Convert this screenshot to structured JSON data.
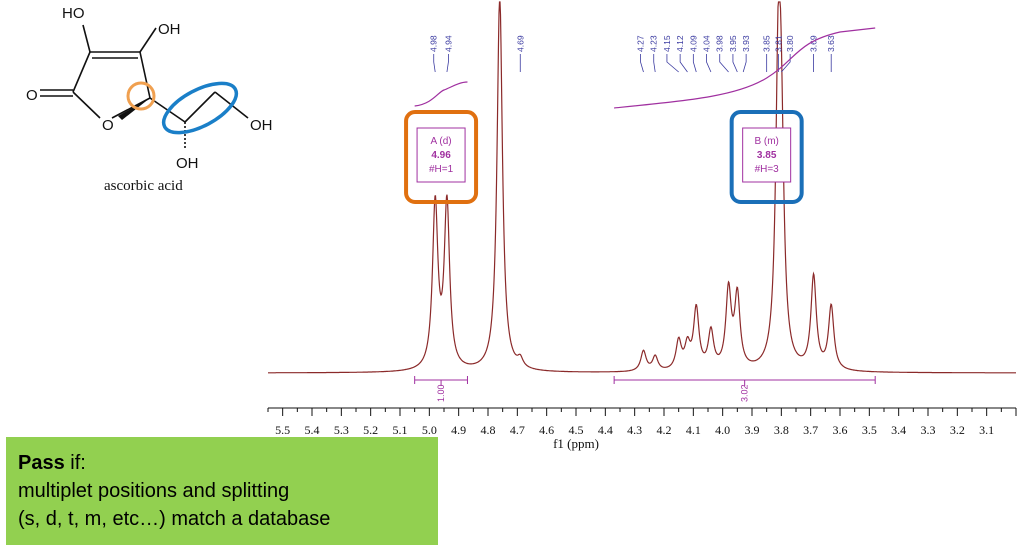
{
  "molecule": {
    "name": "ascorbic acid",
    "atom_labels": [
      "HO",
      "OH",
      "O",
      "O",
      "OH",
      "OH"
    ]
  },
  "chart_data": {
    "type": "line",
    "xlabel": "f1 (ppm)",
    "xlim": [
      5.55,
      3.0
    ],
    "x_reversed": true,
    "x_ticks": [
      "5.5",
      "5.4",
      "5.3",
      "5.2",
      "5.1",
      "5.0",
      "4.9",
      "4.8",
      "4.7",
      "4.6",
      "4.5",
      "4.4",
      "4.3",
      "4.2",
      "4.1",
      "4.0",
      "3.9",
      "3.8",
      "3.7",
      "3.6",
      "3.5",
      "3.4",
      "3.3",
      "3.2",
      "3.1"
    ],
    "peaks": [
      {
        "ppm": 4.98,
        "height": 0.57
      },
      {
        "ppm": 4.94,
        "height": 0.57
      },
      {
        "ppm": 4.76,
        "height": 1.3
      },
      {
        "ppm": 4.69,
        "height": 0.03
      },
      {
        "ppm": 4.27,
        "height": 0.07
      },
      {
        "ppm": 4.23,
        "height": 0.05
      },
      {
        "ppm": 4.15,
        "height": 0.1
      },
      {
        "ppm": 4.12,
        "height": 0.08
      },
      {
        "ppm": 4.09,
        "height": 0.21
      },
      {
        "ppm": 4.04,
        "height": 0.13
      },
      {
        "ppm": 3.98,
        "height": 0.27
      },
      {
        "ppm": 3.95,
        "height": 0.25
      },
      {
        "ppm": 3.81,
        "height": 0.98
      },
      {
        "ppm": 3.8,
        "height": 0.6
      },
      {
        "ppm": 3.69,
        "height": 0.32
      },
      {
        "ppm": 3.63,
        "height": 0.22
      }
    ],
    "peak_labels": [
      "4.98",
      "4.94",
      "4.69",
      "4.27",
      "4.23",
      "4.15",
      "4.12",
      "4.09",
      "4.04",
      "3.98",
      "3.95",
      "3.93",
      "3.85",
      "3.81",
      "3.80",
      "3.69",
      "3.63"
    ],
    "integrations": [
      {
        "from": 5.05,
        "to": 4.87,
        "value": "1.00"
      },
      {
        "from": 4.37,
        "to": 3.48,
        "value": "3.02"
      }
    ],
    "multiplets": [
      {
        "line1": "A (d)",
        "line2": "4.96",
        "line3": "#H=1",
        "ppm": 4.96,
        "highlight": "#e07010"
      },
      {
        "line1": "B (m)",
        "line2": "3.85",
        "line3": "#H=3",
        "ppm": 3.85,
        "highlight": "#1a6fb8"
      }
    ],
    "colors": {
      "spectrum": "#8b2a2a",
      "integral": "#a030a0",
      "peak_label": "#3a3aa0",
      "molecule_highlight_orange": "#f0a050",
      "molecule_highlight_blue": "#1a7fc8"
    }
  },
  "pass_box": {
    "bold_word": "Pass",
    "rest_of_title": " if:",
    "line2": "multiplet positions and splitting",
    "line3": "(s, d, t, m, etc…) match a database"
  }
}
